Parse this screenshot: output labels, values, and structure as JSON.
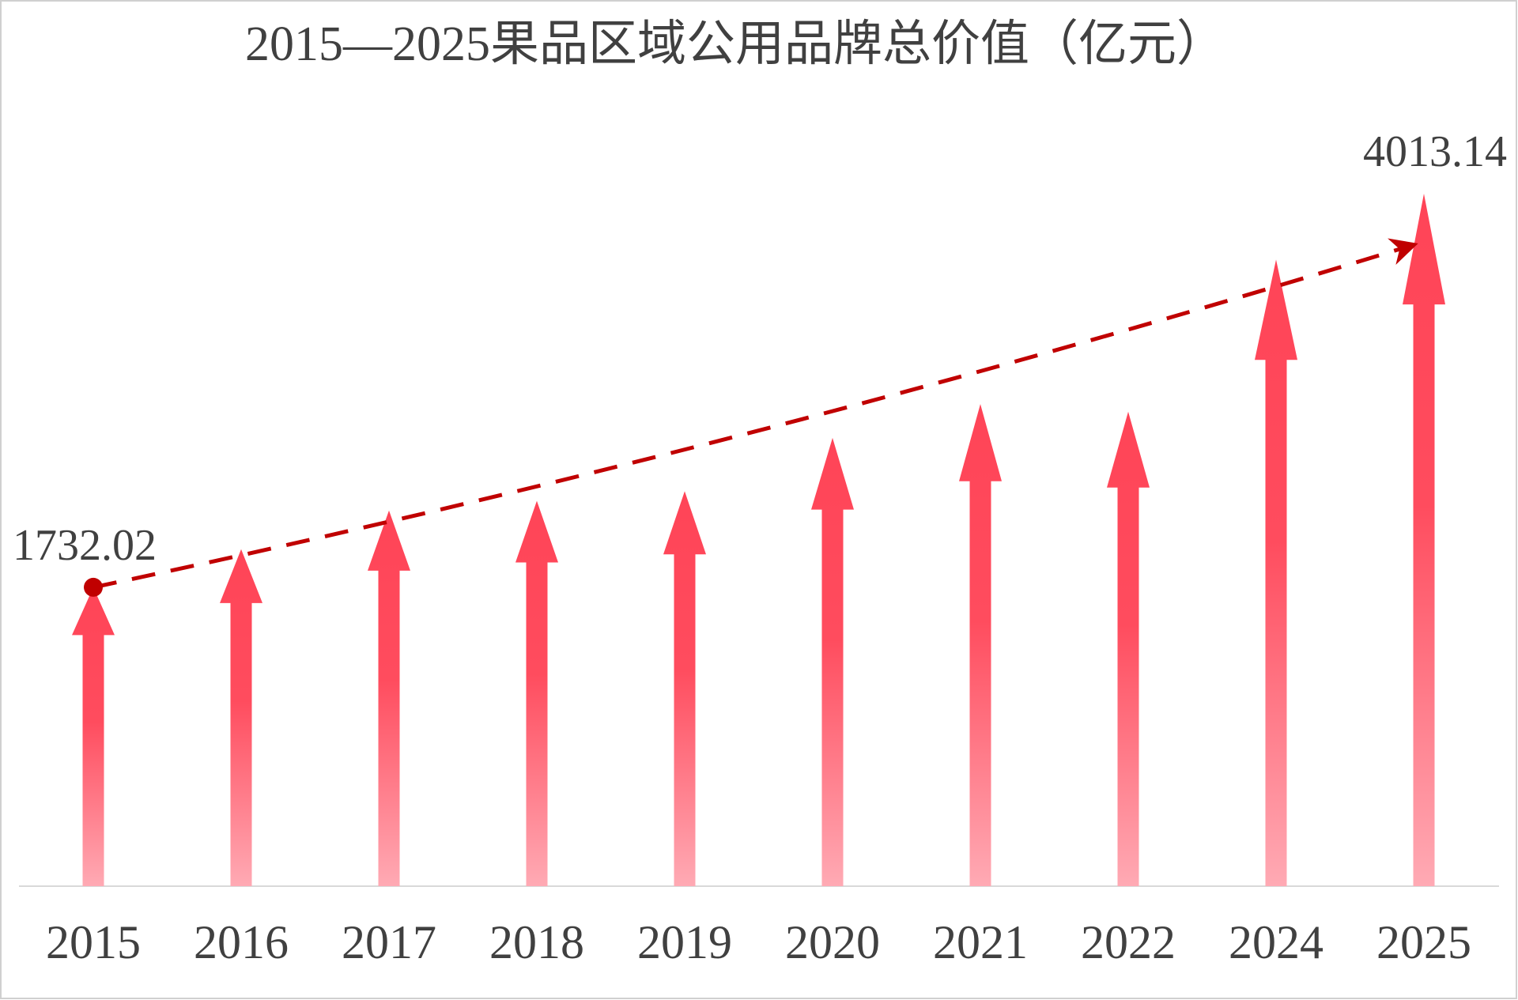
{
  "chart_data": {
    "type": "arrow-bar",
    "title": "2015—2025果品区域公用品牌总价值（亿元）",
    "categories": [
      "2015",
      "2016",
      "2017",
      "2018",
      "2019",
      "2020",
      "2021",
      "2022",
      "2024",
      "2025"
    ],
    "values": [
      1732.02,
      1953,
      2177,
      2233,
      2289,
      2598,
      2794,
      2750,
      3631,
      4013.14
    ],
    "value_labels": [
      "1732.02",
      null,
      null,
      null,
      null,
      null,
      null,
      null,
      null,
      "4013.14"
    ],
    "color": "#ff4457",
    "trend_color": "#c00000"
  }
}
